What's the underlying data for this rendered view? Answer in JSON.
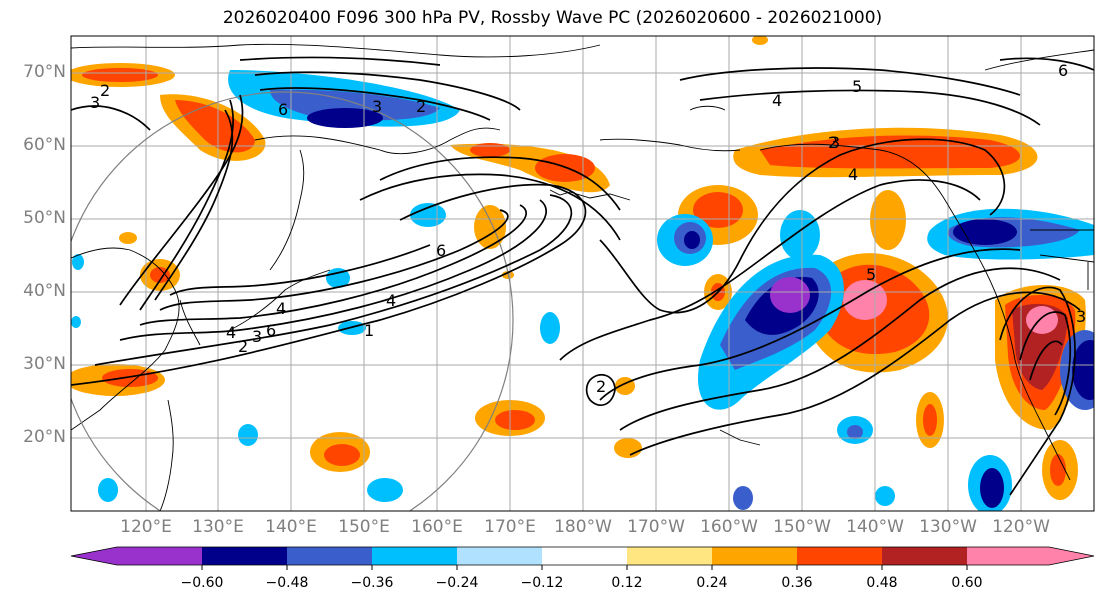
{
  "title": "2026020400 F096 300 hPa PV, Rossby Wave PC (2026020600 - 2026021000)",
  "latitude_labels": [
    "70°N",
    "60°N",
    "50°N",
    "40°N",
    "30°N",
    "20°N"
  ],
  "longitude_labels": [
    "120°E",
    "130°E",
    "140°E",
    "150°E",
    "160°E",
    "170°E",
    "180°W",
    "170°W",
    "160°W",
    "150°W",
    "140°W",
    "130°W",
    "120°W"
  ],
  "colorbar": {
    "tick_labels": [
      "−0.60",
      "−0.48",
      "−0.36",
      "−0.24",
      "−0.12",
      "0.12",
      "0.24",
      "0.36",
      "0.48",
      "0.60"
    ],
    "colors": [
      "#9932cc",
      "#00008b",
      "#3a5fcd",
      "#00bfff",
      "#b0e2ff",
      "#ffffff",
      "#ffe680",
      "#ffa500",
      "#ff4500",
      "#b22222",
      "#ff82ab"
    ]
  },
  "contour_labels": [
    "2",
    "3",
    "6",
    "3",
    "2",
    "4",
    "5",
    "6",
    "4",
    "3",
    "4",
    "6",
    "4",
    "1",
    "6",
    "3",
    "2",
    "2",
    "2",
    "5",
    "3",
    "4"
  ]
}
